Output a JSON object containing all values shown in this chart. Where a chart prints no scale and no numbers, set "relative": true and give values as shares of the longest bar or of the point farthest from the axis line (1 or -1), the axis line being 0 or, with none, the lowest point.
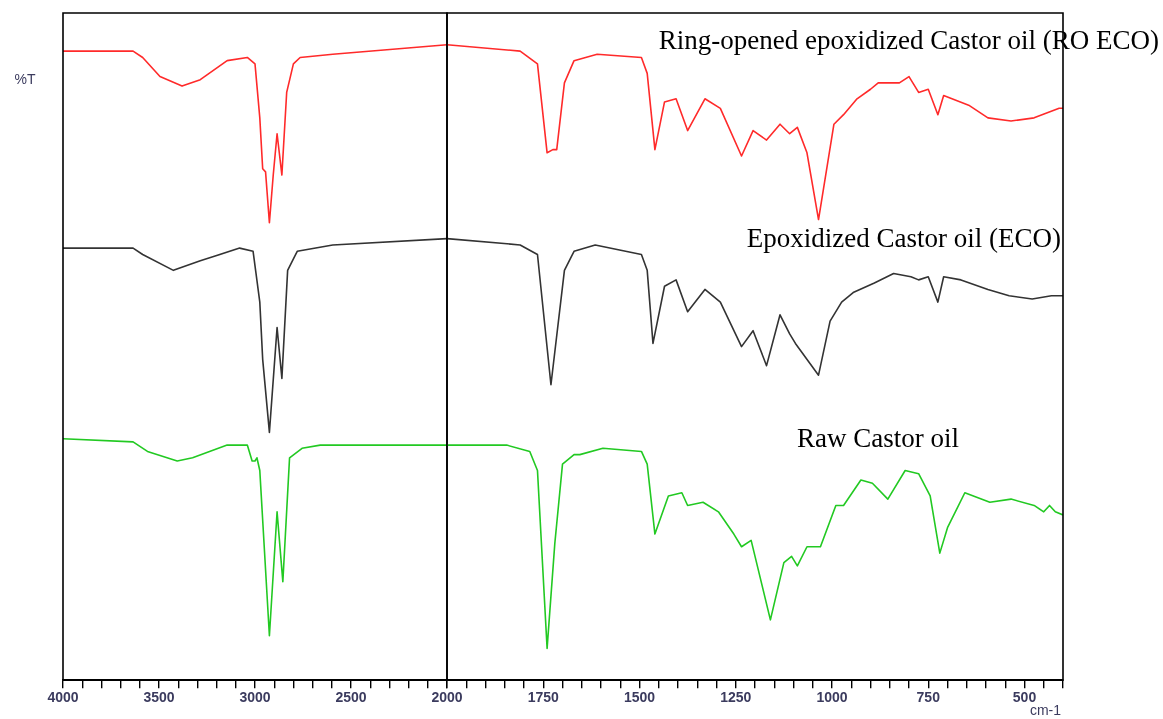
{
  "chart_data": [
    {
      "type": "line",
      "ylabel": "%T",
      "relative": true,
      "legend": false,
      "grid": false,
      "marker": "none",
      "line_style": "solid",
      "xlim": [
        4000,
        2000
      ],
      "xticks": [
        4000,
        {
          "value": 3900,
          "label": null
        },
        {
          "value": 3800,
          "label": null
        },
        {
          "value": 3700,
          "label": null
        },
        {
          "value": 3600,
          "label": null
        },
        3500,
        {
          "value": 3400,
          "label": null
        },
        {
          "value": 3300,
          "label": null
        },
        {
          "value": 3200,
          "label": null
        },
        {
          "value": 3100,
          "label": null
        },
        3000,
        {
          "value": 2900,
          "label": null
        },
        {
          "value": 2800,
          "label": null
        },
        {
          "value": 2700,
          "label": null
        },
        {
          "value": 2600,
          "label": null
        },
        2500,
        {
          "value": 2400,
          "label": null
        },
        {
          "value": 2300,
          "label": null
        },
        {
          "value": 2200,
          "label": null
        },
        {
          "value": 2100,
          "label": null
        },
        {
          "value": 2000,
          "label": null
        }
      ],
      "series": [
        {
          "color": "#ff2a2a",
          "x": [
            4000,
            3635,
            3585,
            3495,
            3380,
            3285,
            3145,
            3040,
            3000,
            2975,
            2960,
            2945,
            2925,
            2905,
            2885,
            2860,
            2835,
            2800,
            2765,
            2595,
            2000
          ],
          "values": [
            0.99,
            0.99,
            0.98,
            0.95,
            0.935,
            0.945,
            0.975,
            0.98,
            0.97,
            0.885,
            0.805,
            0.8,
            0.72,
            0.795,
            0.86,
            0.795,
            0.925,
            0.97,
            0.98,
            0.985,
            1.0
          ]
        },
        {
          "color": "#333333",
          "x": [
            4000,
            3635,
            3585,
            3425,
            3285,
            3080,
            3010,
            2975,
            2960,
            2925,
            2885,
            2860,
            2830,
            2780,
            2595,
            2000
          ],
          "values": [
            0.68,
            0.68,
            0.67,
            0.645,
            0.66,
            0.68,
            0.675,
            0.595,
            0.505,
            0.39,
            0.555,
            0.475,
            0.645,
            0.675,
            0.685,
            0.695
          ]
        },
        {
          "color": "#22c922",
          "x": [
            4000,
            3635,
            3560,
            3405,
            3325,
            3145,
            3040,
            3015,
            3000,
            2990,
            2975,
            2925,
            2885,
            2855,
            2820,
            2755,
            2660,
            2595,
            2000
          ],
          "values": [
            0.38,
            0.375,
            0.36,
            0.345,
            0.35,
            0.37,
            0.37,
            0.345,
            0.345,
            0.35,
            0.33,
            0.07,
            0.265,
            0.155,
            0.35,
            0.365,
            0.37,
            0.37,
            0.37
          ]
        }
      ]
    },
    {
      "type": "line",
      "xlabel": "cm-1",
      "relative": true,
      "legend": false,
      "grid": false,
      "marker": "none",
      "line_style": "solid",
      "xlim": [
        2000,
        400
      ],
      "xticks": [
        2000,
        {
          "value": 1950,
          "label": null
        },
        {
          "value": 1900,
          "label": null
        },
        {
          "value": 1850,
          "label": null
        },
        {
          "value": 1800,
          "label": null
        },
        1750,
        {
          "value": 1700,
          "label": null
        },
        {
          "value": 1650,
          "label": null
        },
        {
          "value": 1600,
          "label": null
        },
        {
          "value": 1550,
          "label": null
        },
        1500,
        {
          "value": 1450,
          "label": null
        },
        {
          "value": 1400,
          "label": null
        },
        {
          "value": 1350,
          "label": null
        },
        {
          "value": 1300,
          "label": null
        },
        1250,
        {
          "value": 1200,
          "label": null
        },
        {
          "value": 1150,
          "label": null
        },
        {
          "value": 1100,
          "label": null
        },
        {
          "value": 1050,
          "label": null
        },
        1000,
        {
          "value": 950,
          "label": null
        },
        {
          "value": 900,
          "label": null
        },
        {
          "value": 850,
          "label": null
        },
        {
          "value": 800,
          "label": null
        },
        750,
        {
          "value": 700,
          "label": null
        },
        {
          "value": 650,
          "label": null
        },
        {
          "value": 600,
          "label": null
        },
        {
          "value": 550,
          "label": null
        },
        500,
        {
          "value": 450,
          "label": null
        },
        {
          "value": 400,
          "label": null
        }
      ],
      "series": [
        {
          "name": "Ring-opened epoxidized Castor oil (RO ECO)",
          "color": "#ff2a2a",
          "x": [
            2000,
            1810,
            1765,
            1740,
            1725,
            1715,
            1695,
            1670,
            1610,
            1495,
            1480,
            1460,
            1435,
            1405,
            1375,
            1330,
            1290,
            1235,
            1205,
            1170,
            1135,
            1110,
            1090,
            1065,
            1035,
            995,
            970,
            935,
            900,
            880,
            825,
            800,
            775,
            750,
            725,
            710,
            645,
            595,
            535,
            475,
            410,
            400
          ],
          "values": [
            1.0,
            0.99,
            0.97,
            0.83,
            0.835,
            0.835,
            0.94,
            0.975,
            0.985,
            0.98,
            0.955,
            0.835,
            0.91,
            0.915,
            0.865,
            0.915,
            0.9,
            0.825,
            0.865,
            0.85,
            0.875,
            0.86,
            0.87,
            0.83,
            0.725,
            0.875,
            0.89,
            0.915,
            0.93,
            0.94,
            0.94,
            0.95,
            0.925,
            0.93,
            0.89,
            0.92,
            0.905,
            0.885,
            0.88,
            0.885,
            0.9,
            0.9
          ]
        },
        {
          "name": "Epoxidized Castor oil (ECO)",
          "color": "#333333",
          "x": [
            2000,
            1810,
            1765,
            1730,
            1695,
            1670,
            1615,
            1495,
            1480,
            1465,
            1435,
            1405,
            1375,
            1330,
            1290,
            1235,
            1205,
            1170,
            1135,
            1110,
            1095,
            1035,
            1005,
            975,
            945,
            890,
            840,
            795,
            775,
            750,
            725,
            710,
            665,
            595,
            540,
            480,
            430,
            400
          ],
          "values": [
            0.695,
            0.685,
            0.67,
            0.465,
            0.645,
            0.675,
            0.685,
            0.67,
            0.645,
            0.53,
            0.62,
            0.63,
            0.58,
            0.615,
            0.595,
            0.525,
            0.55,
            0.495,
            0.575,
            0.545,
            0.53,
            0.48,
            0.565,
            0.595,
            0.61,
            0.625,
            0.64,
            0.635,
            0.63,
            0.635,
            0.595,
            0.635,
            0.63,
            0.615,
            0.605,
            0.6,
            0.605,
            0.605
          ]
        },
        {
          "name": "Raw Castor oil",
          "color": "#22c922",
          "x": [
            2000,
            1845,
            1785,
            1765,
            1740,
            1720,
            1700,
            1670,
            1655,
            1595,
            1495,
            1480,
            1460,
            1425,
            1390,
            1375,
            1335,
            1295,
            1255,
            1235,
            1210,
            1160,
            1125,
            1105,
            1090,
            1065,
            1030,
            990,
            970,
            925,
            895,
            855,
            810,
            775,
            745,
            720,
            700,
            655,
            590,
            535,
            475,
            450,
            435,
            420,
            400
          ],
          "values": [
            0.37,
            0.37,
            0.36,
            0.33,
            0.05,
            0.215,
            0.34,
            0.355,
            0.355,
            0.365,
            0.36,
            0.34,
            0.23,
            0.29,
            0.295,
            0.275,
            0.28,
            0.265,
            0.23,
            0.21,
            0.22,
            0.095,
            0.185,
            0.195,
            0.18,
            0.21,
            0.21,
            0.275,
            0.275,
            0.315,
            0.31,
            0.285,
            0.33,
            0.325,
            0.29,
            0.2,
            0.24,
            0.295,
            0.28,
            0.285,
            0.275,
            0.265,
            0.275,
            0.265,
            0.26
          ]
        }
      ]
    }
  ]
}
